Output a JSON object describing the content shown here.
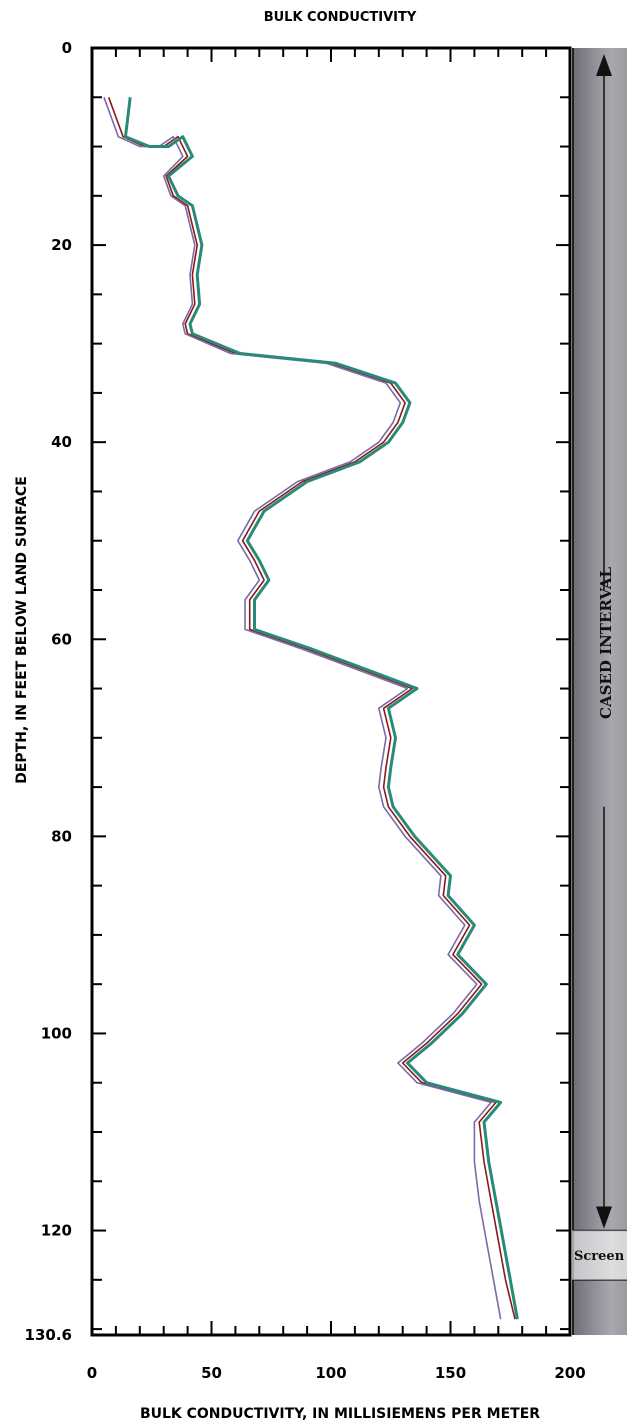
{
  "chart_data": {
    "type": "line",
    "title": "BULK CONDUCTIVITY",
    "xlabel": "BULK CONDUCTIVITY, IN MILLISIEMENS PER METER",
    "ylabel": "DEPTH, IN FEET BELOW LAND SURFACE",
    "xlim": [
      0,
      200
    ],
    "ylim": [
      0,
      130.6
    ],
    "y_inverted": true,
    "x_ticks": [
      "0",
      "50",
      "100",
      "150",
      "200"
    ],
    "y_ticks": [
      "0",
      "20",
      "40",
      "60",
      "80",
      "100",
      "120",
      "130.6"
    ],
    "grid": false,
    "panel_labels": {
      "cased": "CASED INTERVAL",
      "screen": "Screen"
    },
    "intervals": {
      "cased": [
        0,
        120
      ],
      "screen": [
        120,
        125
      ]
    },
    "series": [
      {
        "color": "#8a1a1a",
        "points": [
          [
            7,
            5
          ],
          [
            13,
            9
          ],
          [
            22,
            10
          ],
          [
            30,
            10
          ],
          [
            36,
            9
          ],
          [
            40,
            11
          ],
          [
            31,
            13
          ],
          [
            34,
            15
          ],
          [
            40,
            16
          ],
          [
            44,
            20
          ],
          [
            42,
            23
          ],
          [
            43,
            26
          ],
          [
            39,
            28
          ],
          [
            40,
            29
          ],
          [
            60,
            31
          ],
          [
            100,
            32
          ],
          [
            125,
            34
          ],
          [
            131,
            36
          ],
          [
            128,
            38
          ],
          [
            122,
            40
          ],
          [
            110,
            42
          ],
          [
            88,
            44
          ],
          [
            70,
            47
          ],
          [
            63,
            50
          ],
          [
            68,
            52
          ],
          [
            72,
            54
          ],
          [
            66,
            56
          ],
          [
            66,
            59
          ],
          [
            90,
            61
          ],
          [
            112,
            63
          ],
          [
            134,
            65
          ],
          [
            122,
            67
          ],
          [
            125,
            70
          ],
          [
            123,
            73
          ],
          [
            122,
            75
          ],
          [
            124,
            77
          ],
          [
            133,
            80
          ],
          [
            148,
            84
          ],
          [
            147,
            86
          ],
          [
            158,
            89
          ],
          [
            151,
            92
          ],
          [
            163,
            95
          ],
          [
            153,
            98
          ],
          [
            140,
            101
          ],
          [
            130,
            103
          ],
          [
            138,
            105
          ],
          [
            169,
            107
          ],
          [
            162,
            109
          ],
          [
            164,
            113
          ],
          [
            167,
            117
          ],
          [
            170,
            121
          ],
          [
            173,
            125
          ],
          [
            177,
            129
          ]
        ]
      },
      {
        "color": "#7a6aa8",
        "points": [
          [
            5,
            5
          ],
          [
            11,
            9
          ],
          [
            20,
            10
          ],
          [
            28,
            10
          ],
          [
            34,
            9
          ],
          [
            38,
            11
          ],
          [
            30,
            13
          ],
          [
            33,
            15
          ],
          [
            39,
            16
          ],
          [
            43,
            20
          ],
          [
            41,
            23
          ],
          [
            42,
            26
          ],
          [
            38,
            28
          ],
          [
            39,
            29
          ],
          [
            58,
            31
          ],
          [
            98,
            32
          ],
          [
            123,
            34
          ],
          [
            129,
            36
          ],
          [
            126,
            38
          ],
          [
            120,
            40
          ],
          [
            108,
            42
          ],
          [
            86,
            44
          ],
          [
            68,
            47
          ],
          [
            61,
            50
          ],
          [
            66,
            52
          ],
          [
            70,
            54
          ],
          [
            64,
            56
          ],
          [
            64,
            59
          ],
          [
            88,
            61
          ],
          [
            110,
            63
          ],
          [
            132,
            65
          ],
          [
            120,
            67
          ],
          [
            123,
            70
          ],
          [
            121,
            73
          ],
          [
            120,
            75
          ],
          [
            122,
            77
          ],
          [
            131,
            80
          ],
          [
            146,
            84
          ],
          [
            145,
            86
          ],
          [
            156,
            89
          ],
          [
            149,
            92
          ],
          [
            161,
            95
          ],
          [
            151,
            98
          ],
          [
            138,
            101
          ],
          [
            128,
            103
          ],
          [
            136,
            105
          ],
          [
            167,
            107
          ],
          [
            160,
            109
          ],
          [
            160,
            113
          ],
          [
            162,
            117
          ],
          [
            165,
            121
          ],
          [
            168,
            125
          ],
          [
            171,
            129
          ]
        ]
      },
      {
        "color": "#2a8a7a",
        "points": [
          [
            16,
            5
          ],
          [
            14,
            9
          ],
          [
            24,
            10
          ],
          [
            32,
            10
          ],
          [
            38,
            9
          ],
          [
            42,
            11
          ],
          [
            32,
            13
          ],
          [
            36,
            15
          ],
          [
            42,
            16
          ],
          [
            46,
            20
          ],
          [
            44,
            23
          ],
          [
            45,
            26
          ],
          [
            41,
            28
          ],
          [
            42,
            29
          ],
          [
            62,
            31
          ],
          [
            102,
            32
          ],
          [
            127,
            34
          ],
          [
            133,
            36
          ],
          [
            130,
            38
          ],
          [
            124,
            40
          ],
          [
            112,
            42
          ],
          [
            90,
            44
          ],
          [
            72,
            47
          ],
          [
            65,
            50
          ],
          [
            70,
            52
          ],
          [
            74,
            54
          ],
          [
            68,
            56
          ],
          [
            68,
            59
          ],
          [
            92,
            61
          ],
          [
            114,
            63
          ],
          [
            136,
            65
          ],
          [
            124,
            67
          ],
          [
            127,
            70
          ],
          [
            125,
            73
          ],
          [
            124,
            75
          ],
          [
            126,
            77
          ],
          [
            135,
            80
          ],
          [
            150,
            84
          ],
          [
            149,
            86
          ],
          [
            160,
            89
          ],
          [
            153,
            92
          ],
          [
            165,
            95
          ],
          [
            155,
            98
          ],
          [
            142,
            101
          ],
          [
            132,
            103
          ],
          [
            140,
            105
          ],
          [
            171,
            107
          ],
          [
            164,
            109
          ],
          [
            166,
            113
          ],
          [
            169,
            117
          ],
          [
            172,
            121
          ],
          [
            175,
            125
          ],
          [
            178,
            129
          ]
        ]
      }
    ]
  }
}
